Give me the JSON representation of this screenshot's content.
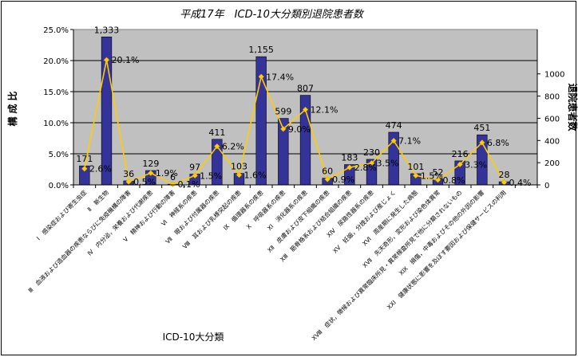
{
  "chart_data": {
    "type": "bar+line",
    "title": "平成17年　ICD-10大分類別退院患者数",
    "xlabel": "ICD-10大分類",
    "ylabel_left": "構成比",
    "ylabel_right": "退院患者数",
    "left_axis": {
      "min": 0,
      "max": 25,
      "step": 5,
      "format": "percent1"
    },
    "right_axis": {
      "min": 0,
      "max": 1400,
      "step": 200
    },
    "grid": true,
    "plot_background": "#C0C0C0",
    "colors": {
      "bar": "#333399",
      "line": "#FFCC00",
      "marker": "#FFCC00"
    },
    "categories": [
      "Ⅰ　感染症および寄生虫症",
      "Ⅱ　新生物",
      "Ⅲ　血液および造血器の疾患ならびに免疫機構の障害",
      "Ⅳ　内分泌，栄養および代謝疾患",
      "Ⅴ　精神および行動の障害",
      "Ⅵ　神経系の疾患",
      "Ⅶ　眼および付属器の疾患",
      "Ⅷ　耳および乳様突起の疾患",
      "Ⅸ　循環器系の疾患",
      "Ⅹ　呼吸器系の疾患",
      "ⅩⅠ　消化器系の疾患",
      "ⅩⅡ　皮膚および皮下組織の疾患",
      "ⅩⅢ　筋骨格系および結合組織の疾患",
      "ⅩⅣ　尿路性器系の疾患",
      "ⅩⅤ　妊娠，分娩および産じょく",
      "ⅩⅥ　周産期に発生した病態",
      "ⅩⅦ　先天奇形，変形および染色体異常",
      "ⅩⅧ　症状，徴候および異常臨床所見・異常検査所見で他に分類されないもの",
      "ⅩⅨ　損傷，中毒およびその他の外因の影響",
      "ⅩⅩⅠ　健康状態に影響を及ぼす要因および保健サービスの利用",
      ""
    ],
    "series": [
      {
        "name": "退院患者数",
        "type": "bar",
        "axis": "right",
        "values": [
          171,
          1333,
          36,
          129,
          6,
          97,
          411,
          103,
          1155,
          599,
          807,
          60,
          183,
          230,
          474,
          101,
          52,
          216,
          451,
          28,
          null
        ],
        "labels": [
          "171",
          "1,333",
          "36",
          "129",
          "6",
          "97",
          "411",
          "103",
          "1,155",
          "599",
          "807",
          "60",
          "183",
          "230",
          "474",
          "101",
          "52",
          "216",
          "451",
          "28",
          ""
        ]
      },
      {
        "name": "構成比",
        "type": "line",
        "axis": "left",
        "values": [
          2.6,
          20.1,
          0.5,
          1.9,
          0.1,
          1.5,
          6.2,
          1.6,
          17.4,
          9.0,
          12.1,
          0.9,
          2.8,
          3.5,
          7.1,
          1.5,
          0.8,
          3.3,
          6.8,
          0.4,
          null
        ],
        "labels": [
          "2.6%",
          "20.1%",
          "0.5%",
          "1.9%",
          "0.1%",
          "1.5%",
          "6.2%",
          "1.6%",
          "17.4%",
          "9.0%",
          "12.1%",
          "0.9%",
          "2.8%",
          "3.5%",
          "7.1%",
          "1.5%",
          "0.8%",
          "3.3%",
          "6.8%",
          "0.4%",
          ""
        ]
      }
    ]
  }
}
